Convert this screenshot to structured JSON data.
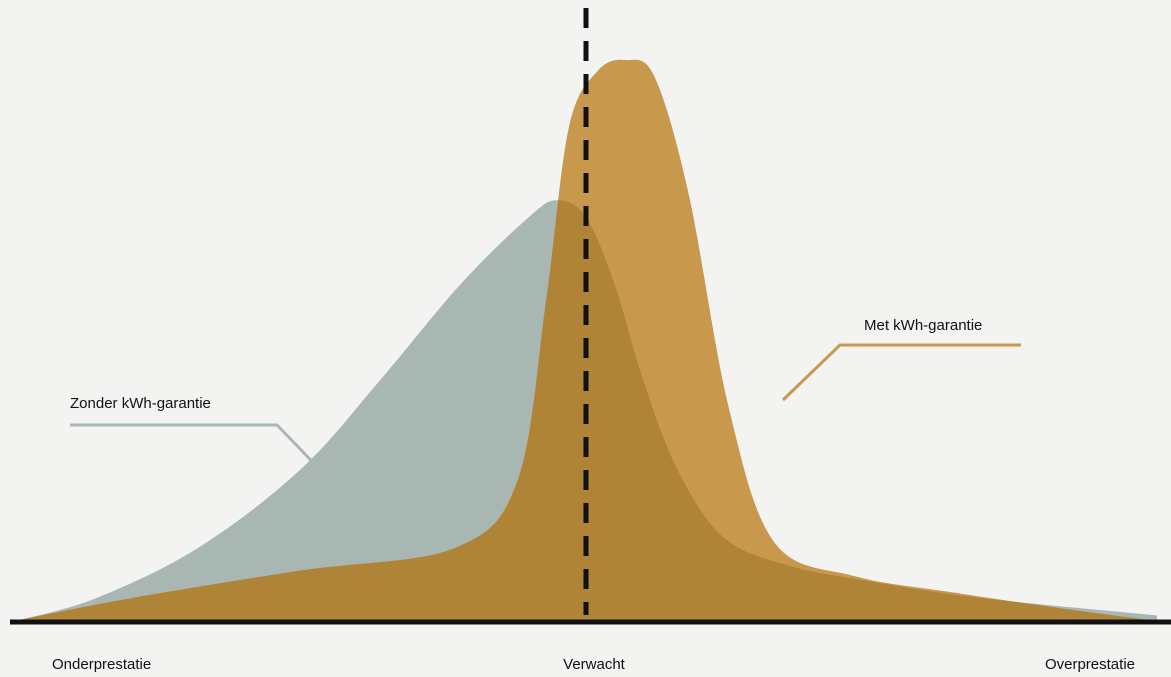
{
  "chart_data": {
    "type": "area",
    "title": "",
    "xlabel": "",
    "ylabel": "",
    "x_tick_labels": [
      "Onderprestatie",
      "Verwacht",
      "Overprestatie"
    ],
    "x_range": [
      -1,
      1
    ],
    "y_range": [
      0,
      1
    ],
    "reference_line": {
      "x": 0,
      "style": "dashed"
    },
    "series": [
      {
        "name": "Zonder kWh-garantie",
        "color": "#a9b7b3",
        "peak_x": -0.05,
        "peak_y": 0.75,
        "points": [
          [
            -1.0,
            0.0
          ],
          [
            -0.86,
            0.04
          ],
          [
            -0.68,
            0.13
          ],
          [
            -0.5,
            0.27
          ],
          [
            -0.36,
            0.43
          ],
          [
            -0.22,
            0.6
          ],
          [
            -0.1,
            0.72
          ],
          [
            -0.05,
            0.75
          ],
          [
            0.0,
            0.72
          ],
          [
            0.05,
            0.6
          ],
          [
            0.1,
            0.43
          ],
          [
            0.16,
            0.27
          ],
          [
            0.24,
            0.15
          ],
          [
            0.35,
            0.1
          ],
          [
            0.5,
            0.07
          ],
          [
            0.7,
            0.04
          ],
          [
            1.0,
            0.01
          ]
        ]
      },
      {
        "name": "Met kWh-garantie",
        "color": "#c8994d",
        "peak_x": 0.07,
        "peak_y": 1.0,
        "points": [
          [
            -1.0,
            0.0
          ],
          [
            -0.8,
            0.04
          ],
          [
            -0.5,
            0.09
          ],
          [
            -0.23,
            0.13
          ],
          [
            -0.12,
            0.25
          ],
          [
            -0.07,
            0.57
          ],
          [
            -0.03,
            0.88
          ],
          [
            0.02,
            0.98
          ],
          [
            0.07,
            1.0
          ],
          [
            0.12,
            0.97
          ],
          [
            0.18,
            0.76
          ],
          [
            0.25,
            0.38
          ],
          [
            0.33,
            0.14
          ],
          [
            0.47,
            0.08
          ],
          [
            0.65,
            0.05
          ],
          [
            0.85,
            0.02
          ],
          [
            1.0,
            0.0
          ]
        ]
      }
    ],
    "overlap_color": "#b08437",
    "axis_color": "#111111"
  }
}
